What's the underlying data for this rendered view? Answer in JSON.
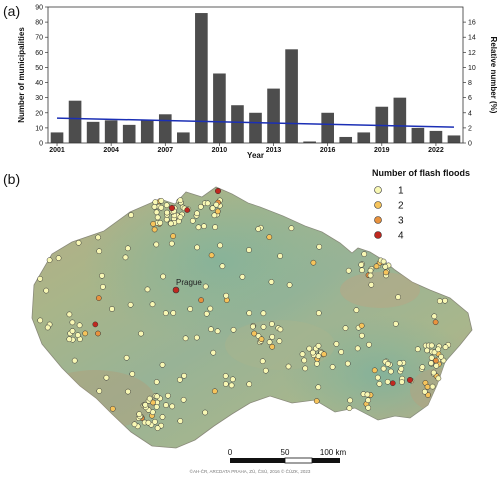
{
  "panel_a_label": "(a)",
  "panel_b_label": "(b)",
  "chart_data": {
    "type": "bar",
    "x": [
      2001,
      2002,
      2003,
      2004,
      2005,
      2006,
      2007,
      2008,
      2009,
      2010,
      2011,
      2012,
      2013,
      2014,
      2015,
      2016,
      2017,
      2018,
      2019,
      2020,
      2021,
      2022,
      2023
    ],
    "values": [
      7,
      28,
      14,
      15,
      12,
      15,
      19,
      7,
      86,
      46,
      25,
      20,
      36,
      62,
      1,
      20,
      4,
      7,
      24,
      30,
      10,
      8,
      5
    ],
    "xticks": [
      "2001",
      "2004",
      "2007",
      "2010",
      "2013",
      "2016",
      "2019",
      "2022"
    ],
    "ylabel": "Number of municipalities",
    "y2label": "Relative number (%)",
    "xlabel": "Year",
    "ylim": [
      0,
      90
    ],
    "yticks": [
      "0",
      "10",
      "20",
      "30",
      "40",
      "50",
      "60",
      "70",
      "80",
      "90"
    ],
    "y2lim": [
      0,
      18
    ],
    "y2ticks": [
      "0",
      "2",
      "4",
      "6",
      "8",
      "10",
      "12",
      "14",
      "16"
    ],
    "trend": {
      "x": [
        2001,
        2023
      ],
      "y": [
        16.5,
        10.5
      ]
    },
    "bar_color": "#4d4d4d",
    "trend_color": "#1b2fb5"
  },
  "map": {
    "city_label": "Prague",
    "legend_title": "Number of flash floods",
    "legend": [
      {
        "label": "1",
        "color": "#f8f8b4"
      },
      {
        "label": "2",
        "color": "#f6c45c"
      },
      {
        "label": "3",
        "color": "#e8923e"
      },
      {
        "label": "4",
        "color": "#c0281f"
      }
    ],
    "scale_labels": [
      "0",
      "50",
      "100 km"
    ],
    "credit": "©AH-ČR, ARCDATA PRAHA, ZÚ, ČSÚ, 2016 © ČÚZK, 2023"
  }
}
